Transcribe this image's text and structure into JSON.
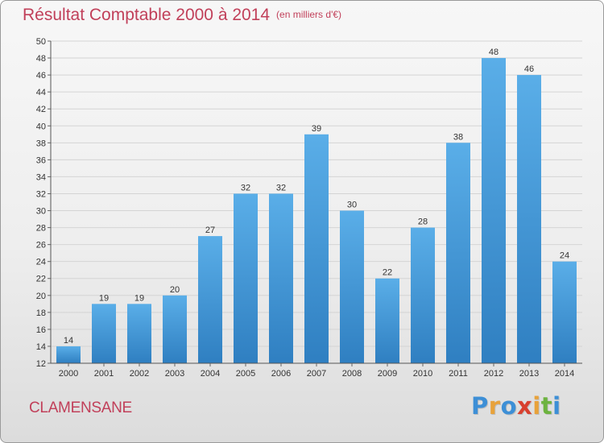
{
  "title": {
    "main": "Résultat Comptable 2000 à 2014",
    "unit": "(en milliers d'€)"
  },
  "footer": {
    "commune": "CLAMENSANE",
    "logo_letters": [
      {
        "char": "P",
        "color": "#3d8fd6"
      },
      {
        "char": "r",
        "color": "#e8a23a"
      },
      {
        "char": "o",
        "color": "#3d8fd6"
      },
      {
        "char": "x",
        "color": "#d8402f"
      },
      {
        "char": "i",
        "color": "#e8a23a"
      },
      {
        "char": "t",
        "color": "#6db33f"
      },
      {
        "char": "i",
        "color": "#3d8fd6"
      }
    ]
  },
  "chart_data": {
    "type": "bar",
    "title": "Résultat Comptable 2000 à 2014",
    "xlabel": "",
    "ylabel": "",
    "categories": [
      "2000",
      "2001",
      "2002",
      "2003",
      "2004",
      "2005",
      "2006",
      "2007",
      "2008",
      "2009",
      "2010",
      "2011",
      "2012",
      "2013",
      "2014"
    ],
    "values": [
      14,
      19,
      19,
      20,
      27,
      32,
      32,
      39,
      30,
      22,
      28,
      38,
      48,
      46,
      24
    ],
    "ylim": [
      12,
      50
    ],
    "yticks": [
      12,
      14,
      16,
      18,
      20,
      22,
      24,
      26,
      28,
      30,
      32,
      34,
      36,
      38,
      40,
      42,
      44,
      46,
      48,
      50
    ],
    "grid": true,
    "bar_color_top": "#5aaee8",
    "bar_color_bottom": "#2f7fc1"
  }
}
